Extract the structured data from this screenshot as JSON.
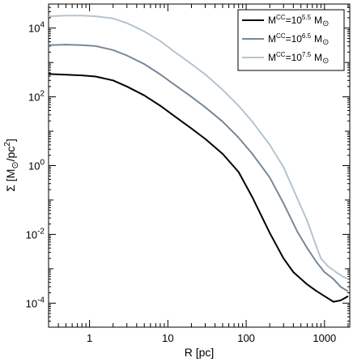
{
  "chart_data": {
    "type": "line",
    "xscale": "log",
    "yscale": "log",
    "xlim": [
      0.3,
      2100
    ],
    "ylim": [
      2e-05,
      50000
    ],
    "xlabel": "R [pc]",
    "ylabel_main": "Σ [M",
    "ylabel_unit": "/pc",
    "ylabel_exp": "2",
    "ylabel_close": "]",
    "x_ticks": [
      {
        "value": 1,
        "label": "1"
      },
      {
        "value": 10,
        "label": "10"
      },
      {
        "value": 100,
        "label": "100"
      },
      {
        "value": 1000,
        "label": "1000"
      }
    ],
    "y_ticks": [
      {
        "value": 0.0001,
        "base": "10",
        "exp": "-4"
      },
      {
        "value": 0.01,
        "base": "10",
        "exp": "-2"
      },
      {
        "value": 1,
        "base": "10",
        "exp": "0"
      },
      {
        "value": 100,
        "base": "10",
        "exp": "2"
      },
      {
        "value": 10000,
        "base": "10",
        "exp": "4"
      }
    ],
    "legend": {
      "position": "top-right"
    },
    "series": [
      {
        "name_base": "M",
        "name_sup": "CC",
        "name_mid": "=10",
        "name_exp": "5.5",
        "name_unit": "M",
        "color": "#000000",
        "x": [
          0.3,
          0.5,
          0.8,
          1.2,
          2,
          3,
          5,
          8,
          12,
          20,
          30,
          50,
          80,
          120,
          200,
          300,
          400,
          600,
          800,
          1000,
          1300,
          1600,
          2000
        ],
        "y": [
          460,
          440,
          420,
          390,
          300,
          200,
          110,
          55,
          28,
          12,
          6,
          2.2,
          0.65,
          0.12,
          0.011,
          0.002,
          0.0008,
          0.00035,
          0.00022,
          0.00016,
          0.00011,
          0.00012,
          0.00016
        ]
      },
      {
        "name_base": "M",
        "name_sup": "CC",
        "name_mid": "=10",
        "name_exp": "6.5",
        "name_unit": "M",
        "color": "#778899",
        "x": [
          0.3,
          0.5,
          0.8,
          1.2,
          2,
          3,
          5,
          8,
          12,
          20,
          30,
          50,
          80,
          120,
          200,
          300,
          450,
          600,
          800,
          1000,
          1300,
          1600,
          2000
        ],
        "y": [
          3200,
          3300,
          3200,
          3000,
          2300,
          1600,
          900,
          450,
          230,
          100,
          50,
          19,
          6.5,
          2.2,
          0.45,
          0.08,
          0.012,
          0.004,
          0.0015,
          0.0008,
          0.0005,
          0.0003,
          0.00022
        ]
      },
      {
        "name_base": "M",
        "name_sup": "CC",
        "name_mid": "=10",
        "name_exp": "7.5",
        "name_unit": "M",
        "color": "#b4c4cf",
        "x": [
          0.3,
          0.5,
          0.8,
          1.2,
          2,
          3,
          5,
          8,
          12,
          20,
          30,
          50,
          80,
          120,
          200,
          300,
          450,
          600,
          800,
          900,
          1100,
          1400,
          1700,
          2000
        ],
        "y": [
          22000,
          23000,
          23000,
          22000,
          19000,
          14000,
          8000,
          4200,
          2100,
          900,
          450,
          160,
          55,
          19,
          4,
          0.9,
          0.11,
          0.025,
          0.004,
          0.002,
          0.0012,
          0.0008,
          0.0006,
          0.0005
        ]
      }
    ]
  }
}
